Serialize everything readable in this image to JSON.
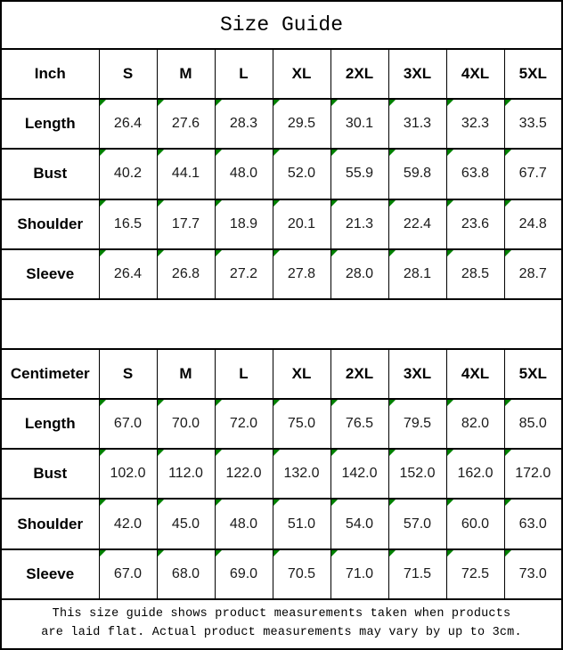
{
  "title": "Size Guide",
  "sizes": [
    "S",
    "M",
    "L",
    "XL",
    "2XL",
    "3XL",
    "4XL",
    "5XL"
  ],
  "colors": {
    "border": "#000000",
    "error_indicator": "#008000",
    "background": "#ffffff"
  },
  "icons": {
    "error_indicator": "green-corner-triangle"
  },
  "tables": [
    {
      "unit_label": "Inch",
      "rows": [
        {
          "label": "Length",
          "values": [
            "26.4",
            "27.6",
            "28.3",
            "29.5",
            "30.1",
            "31.3",
            "32.3",
            "33.5"
          ]
        },
        {
          "label": "Bust",
          "values": [
            "40.2",
            "44.1",
            "48.0",
            "52.0",
            "55.9",
            "59.8",
            "63.8",
            "67.7"
          ]
        },
        {
          "label": "Shoulder",
          "values": [
            "16.5",
            "17.7",
            "18.9",
            "20.1",
            "21.3",
            "22.4",
            "23.6",
            "24.8"
          ]
        },
        {
          "label": "Sleeve",
          "values": [
            "26.4",
            "26.8",
            "27.2",
            "27.8",
            "28.0",
            "28.1",
            "28.5",
            "28.7"
          ]
        }
      ]
    },
    {
      "unit_label": "Centimeter",
      "rows": [
        {
          "label": "Length",
          "values": [
            "67.0",
            "70.0",
            "72.0",
            "75.0",
            "76.5",
            "79.5",
            "82.0",
            "85.0"
          ]
        },
        {
          "label": "Bust",
          "values": [
            "102.0",
            "112.0",
            "122.0",
            "132.0",
            "142.0",
            "152.0",
            "162.0",
            "172.0"
          ]
        },
        {
          "label": "Shoulder",
          "values": [
            "42.0",
            "45.0",
            "48.0",
            "51.0",
            "54.0",
            "57.0",
            "60.0",
            "63.0"
          ]
        },
        {
          "label": "Sleeve",
          "values": [
            "67.0",
            "68.0",
            "69.0",
            "70.5",
            "71.0",
            "71.5",
            "72.5",
            "73.0"
          ]
        }
      ]
    }
  ],
  "footer": {
    "line1": "This size guide shows product measurements taken when products",
    "line2": "are laid flat. Actual product measurements may vary by up to 3cm."
  }
}
